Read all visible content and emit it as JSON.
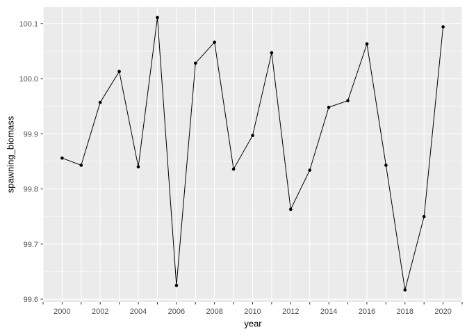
{
  "chart_data": {
    "type": "line",
    "title": "",
    "xlabel": "year",
    "ylabel": "spawning_biomass",
    "x": [
      2000,
      2001,
      2002,
      2003,
      2004,
      2005,
      2006,
      2007,
      2008,
      2009,
      2010,
      2011,
      2012,
      2013,
      2014,
      2015,
      2016,
      2017,
      2018,
      2019,
      2020
    ],
    "y": [
      99.856,
      99.843,
      99.957,
      100.013,
      99.84,
      100.111,
      99.625,
      100.028,
      100.066,
      99.836,
      99.897,
      100.047,
      99.763,
      99.834,
      99.948,
      99.96,
      100.063,
      99.843,
      99.617,
      99.75,
      100.094
    ],
    "series_name": "spawning_biomass",
    "x_tick_labels": [
      "2000",
      "2002",
      "2004",
      "2006",
      "2008",
      "2010",
      "2012",
      "2014",
      "2016",
      "2018",
      "2020"
    ],
    "x_tick_values": [
      2000,
      2002,
      2004,
      2006,
      2008,
      2010,
      2012,
      2014,
      2016,
      2018,
      2020
    ],
    "x_tick_mark_step": 1,
    "x_grid_step": 1,
    "y_tick_labels": [
      "99.6",
      "99.7",
      "99.8",
      "99.9",
      "100.0",
      "100.1"
    ],
    "y_tick_values": [
      99.6,
      99.7,
      99.8,
      99.9,
      100.0,
      100.1
    ],
    "y_minor_ticks": [
      99.65,
      99.75,
      99.85,
      99.95,
      100.05
    ],
    "xlim": [
      1999,
      2021
    ],
    "ylim": [
      99.595,
      100.13
    ],
    "grid": "on",
    "legend": "none",
    "colors": {
      "panel_bg": "#EBEBEB",
      "grid_major": "#FFFFFF",
      "grid_minor": "#FFFFFF",
      "line": "#000000",
      "point": "#000000",
      "tick_mark": "#333333",
      "tick_label": "#4D4D4D",
      "axis_title": "#000000",
      "page_bg": "#FFFFFF"
    }
  }
}
